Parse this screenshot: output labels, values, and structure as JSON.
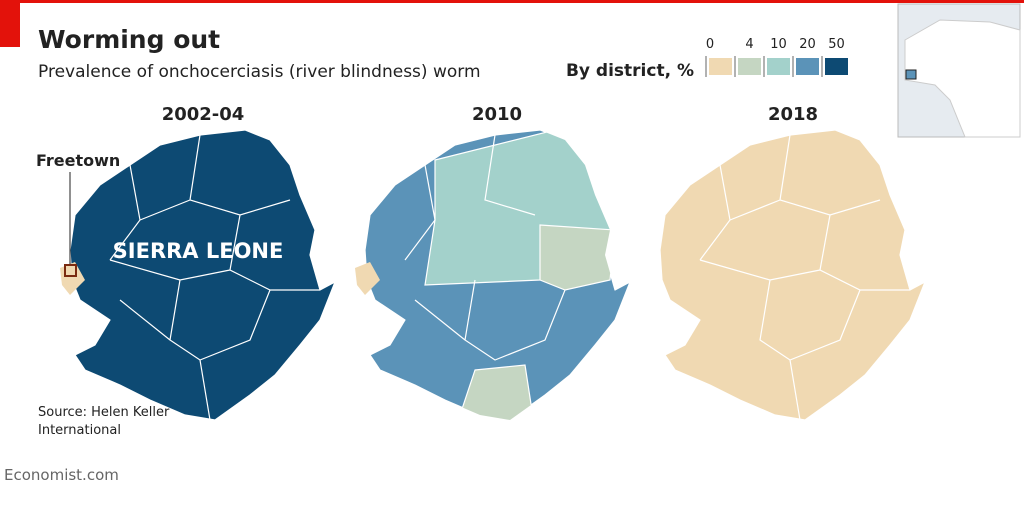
{
  "header": {
    "title": "Worming out",
    "subtitle": "Prevalence of onchocerciasis (river blindness) worm"
  },
  "legend": {
    "title": "By district, %",
    "ticks": [
      0,
      4,
      10,
      20,
      50
    ],
    "colors": [
      "#f0d9b2",
      "#c5d6c2",
      "#a3d1cb",
      "#5b93b8",
      "#0d4a73"
    ]
  },
  "maps": [
    {
      "title": "2002-04"
    },
    {
      "title": "2010"
    },
    {
      "title": "2018"
    }
  ],
  "labels": {
    "city": "Freetown",
    "country": "SIERRA LEONE"
  },
  "source": "Source: Helen Keller International",
  "footer": "Economist.com"
}
